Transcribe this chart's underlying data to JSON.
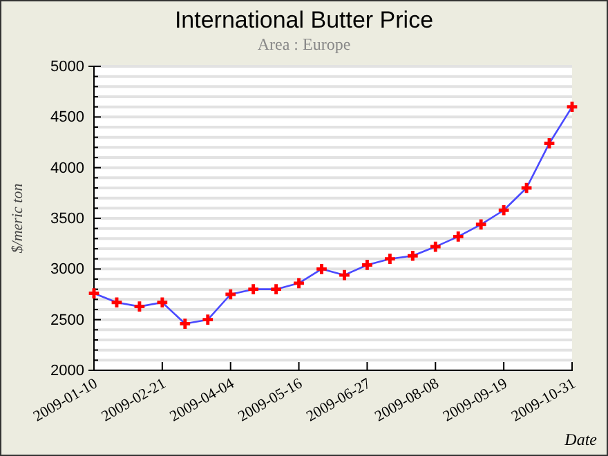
{
  "chart_data": {
    "type": "line",
    "title": "International Butter Price",
    "subtitle": "Area : Europe",
    "xlabel": "Date",
    "ylabel": "$/meric ton",
    "x": [
      "2009-01-10",
      "2009-01-24",
      "2009-02-07",
      "2009-02-21",
      "2009-03-07",
      "2009-03-21",
      "2009-04-04",
      "2009-04-18",
      "2009-05-02",
      "2009-05-16",
      "2009-05-30",
      "2009-06-13",
      "2009-06-27",
      "2009-07-11",
      "2009-07-25",
      "2009-08-08",
      "2009-08-22",
      "2009-09-05",
      "2009-09-19",
      "2009-10-03",
      "2009-10-17",
      "2009-10-31"
    ],
    "series": [
      {
        "color": "#4a4aff",
        "colors": [
          "#ff0000",
          "#ff0000",
          "#ff0000",
          "#ff0000",
          "#ff0000",
          "#ff0000",
          "#ff0000",
          "#ff0000",
          "#ff0000",
          "#ff0000",
          "#ff0000",
          "#ff0000",
          "#ff0000",
          "#ff0000",
          "#ff0000",
          "#ff0000",
          "#ff0000",
          "#ff0000",
          "#ff0000",
          "#ff0000",
          "#ff0000",
          "#ff0000"
        ],
        "values": [
          2760,
          2670,
          2630,
          2670,
          2460,
          2500,
          2750,
          2800,
          2800,
          2860,
          3000,
          2940,
          3040,
          3100,
          3130,
          3220,
          3320,
          3440,
          3580,
          3800,
          4240,
          4600
        ]
      }
    ],
    "xlim": [
      "2009-01-10",
      "2009-10-31"
    ],
    "xticks": [
      "2009-01-10",
      "2009-02-21",
      "2009-04-04",
      "2009-05-16",
      "2009-06-27",
      "2009-08-08",
      "2009-09-19",
      "2009-10-31"
    ],
    "ylim": [
      2000,
      5000
    ],
    "yticks": [
      2000,
      {
        "value": 2100,
        "label": null
      },
      {
        "value": 2200,
        "label": null
      },
      {
        "value": 2300,
        "label": null
      },
      {
        "value": 2400,
        "label": null
      },
      2500,
      {
        "value": 2600,
        "label": null
      },
      {
        "value": 2700,
        "label": null
      },
      {
        "value": 2800,
        "label": null
      },
      {
        "value": 2900,
        "label": null
      },
      3000,
      {
        "value": 3100,
        "label": null
      },
      {
        "value": 3200,
        "label": null
      },
      {
        "value": 3300,
        "label": null
      },
      {
        "value": 3400,
        "label": null
      },
      3500,
      {
        "value": 3600,
        "label": null
      },
      {
        "value": 3700,
        "label": null
      },
      {
        "value": 3800,
        "label": null
      },
      {
        "value": 3900,
        "label": null
      },
      4000,
      {
        "value": 4100,
        "label": null
      },
      {
        "value": 4200,
        "label": null
      },
      {
        "value": 4300,
        "label": null
      },
      {
        "value": 4400,
        "label": null
      },
      4500,
      {
        "value": 4600,
        "label": null
      },
      {
        "value": 4700,
        "label": null
      },
      {
        "value": 4800,
        "label": null
      },
      {
        "value": 4900,
        "label": null
      },
      5000
    ],
    "grid": "y",
    "marker": "cross",
    "line_style": "solid"
  }
}
